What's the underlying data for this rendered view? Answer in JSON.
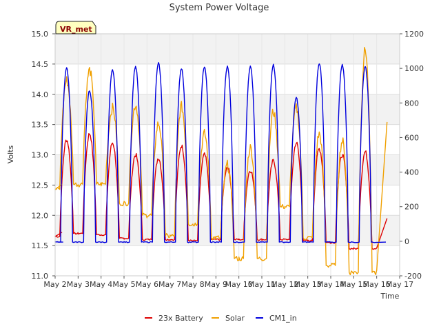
{
  "chart_data": {
    "type": "line",
    "title": "System Power Voltage",
    "ylabel": "Volts",
    "xlabel": "Time",
    "ylim": [
      11.0,
      15.0
    ],
    "y2lim": [
      -200,
      1200
    ],
    "xlim": [
      2,
      17
    ],
    "y_ticks": [
      "11.0",
      "11.5",
      "12.0",
      "12.5",
      "13.0",
      "13.5",
      "14.0",
      "14.5",
      "15.0"
    ],
    "y2_ticks": [
      "-200",
      "0",
      "200",
      "400",
      "600",
      "800",
      "1000",
      "1200"
    ],
    "x_ticks": [
      "May 2",
      "May 3",
      "May 4",
      "May 5",
      "May 6",
      "May 7",
      "May 8",
      "May 9",
      "May 10",
      "May 11",
      "May 12",
      "May 13",
      "May 14",
      "May 15",
      "May 16",
      "May 17"
    ],
    "badge": "VR_met",
    "legend_position": "bottom",
    "grid": true,
    "series": [
      {
        "name": "23x Battery",
        "axis": "left",
        "color": "#dd0000",
        "days": [
          2.5,
          3.5,
          4.5,
          5.5,
          6.5,
          7.5,
          8.5,
          9.5,
          10.5,
          11.5,
          12.5,
          13.5,
          14.5,
          15.5
        ],
        "peaks": [
          13.25,
          13.35,
          13.2,
          13.0,
          12.95,
          13.15,
          13.0,
          12.8,
          12.75,
          12.9,
          13.2,
          13.1,
          13.0,
          13.05
        ],
        "baselines": [
          11.65,
          11.7,
          11.68,
          11.62,
          11.6,
          11.6,
          11.58,
          11.6,
          11.6,
          11.6,
          11.6,
          11.58,
          11.55,
          11.45
        ],
        "start": [
          2.3,
          11.72
        ],
        "end": [
          16.45,
          11.95
        ]
      },
      {
        "name": "Solar",
        "axis": "right",
        "color": "#f0a000",
        "days": [
          2.5,
          3.5,
          4.5,
          5.5,
          6.5,
          7.5,
          8.5,
          9.5,
          10.5,
          11.5,
          12.5,
          13.5,
          14.5,
          15.5
        ],
        "peaks": [
          930,
          990,
          770,
          790,
          680,
          780,
          620,
          440,
          540,
          750,
          770,
          620,
          580,
          1110
        ],
        "troughs": [
          300,
          330,
          330,
          220,
          150,
          30,
          100,
          20,
          -100,
          -100,
          200,
          20,
          -140,
          -180
        ],
        "start": [
          2.3,
          330
        ],
        "end": [
          16.45,
          690
        ]
      },
      {
        "name": "CM1_in",
        "axis": "right",
        "color": "#0000dd",
        "days": [
          2.5,
          3.5,
          4.5,
          5.5,
          6.5,
          7.5,
          8.5,
          9.5,
          10.5,
          11.5,
          12.5,
          13.5,
          14.5,
          15.5
        ],
        "peaks": [
          1000,
          870,
          990,
          1010,
          1030,
          1000,
          1010,
          1010,
          1010,
          1020,
          830,
          1030,
          1020,
          1010
        ],
        "baseline": -5,
        "start": [
          2.35,
          -5
        ],
        "end": [
          16.4,
          -5
        ]
      }
    ]
  }
}
